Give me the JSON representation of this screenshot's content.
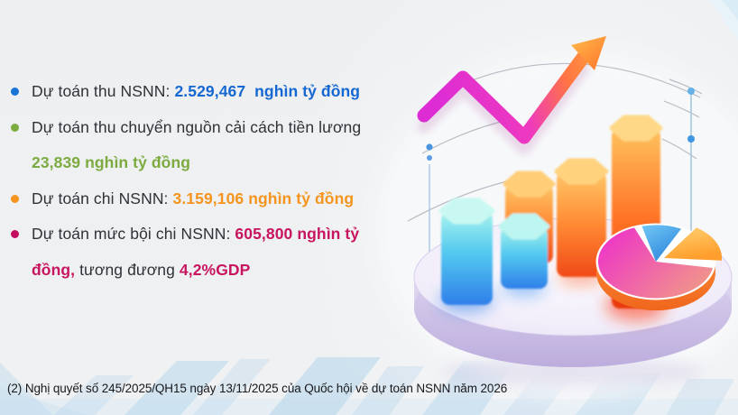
{
  "bullets": {
    "items": [
      {
        "dot_color": "#1a75d8",
        "lines": [
          [
            {
              "t": "Dự toán thu NSNN: ",
              "c": "#2f3237",
              "b": false
            },
            {
              "t": "2.529,467  nghìn tỷ đồng",
              "c": "#1568d2",
              "b": true
            }
          ]
        ]
      },
      {
        "dot_color": "#7dab40",
        "lines": [
          [
            {
              "t": "Dự toán thu chuyển nguồn cải cách tiền lương",
              "c": "#2f3237",
              "b": false
            }
          ],
          [
            {
              "t": "23,839 nghìn tỷ đồng",
              "c": "#7dab40",
              "b": true
            }
          ]
        ]
      },
      {
        "dot_color": "#f5941e",
        "lines": [
          [
            {
              "t": "Dự toán chi NSNN: ",
              "c": "#2f3237",
              "b": false
            },
            {
              "t": "3.159,106 nghìn tỷ đồng",
              "c": "#f5941e",
              "b": true
            }
          ]
        ]
      },
      {
        "dot_color": "#c40d5e",
        "lines": [
          [
            {
              "t": "Dự toán mức bội chi NSNN: ",
              "c": "#2f3237",
              "b": false
            },
            {
              "t": "605,800 nghìn tỷ",
              "c": "#c8155f",
              "b": true
            }
          ],
          [
            {
              "t": "đồng,",
              "c": "#c8155f",
              "b": true
            },
            {
              "t": " tương đương ",
              "c": "#2f3237",
              "b": false
            },
            {
              "t": "4,2%GDP",
              "c": "#c8155f",
              "b": true
            }
          ]
        ]
      }
    ]
  },
  "footnote": {
    "text": "(2) Nghị quyết số 245/2025/QH15 ngày 13/11/2025 của Quốc hội về dự toán NSNN năm 2026"
  },
  "illustration": {
    "icons": [
      "trend-arrow-icon",
      "bar-chart-icon",
      "pie-chart-icon",
      "platform-disc",
      "marker-dots"
    ],
    "palette": {
      "arrow_magenta": "#dd2cd4",
      "arrow_orange": "#ffa03a",
      "bar_cyan": "#3fbcee",
      "bar_orange": "#ff7a2e",
      "pie_magenta": "#ee3cc6",
      "pie_salmon": "#ef9a85",
      "pie_blue": "#3f9ae4",
      "pie_yellow": "#ffb24a",
      "platform_lavender": "#cfc3e8",
      "accent_dot_blue": "#55a4e4"
    }
  },
  "background": {
    "base": "#eef0f2",
    "texture_blue": "#aed2ea"
  }
}
